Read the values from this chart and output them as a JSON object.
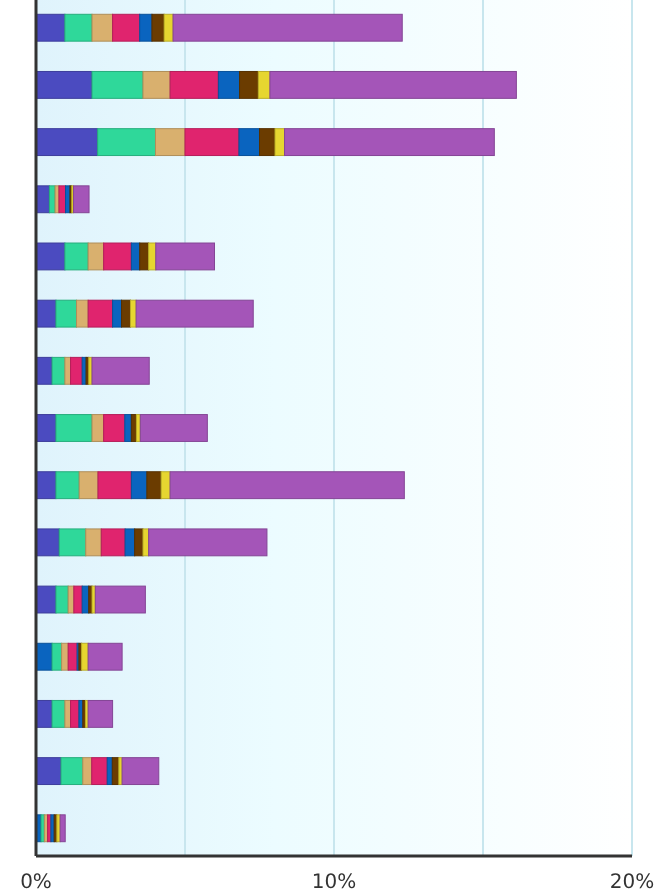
{
  "chart_data": {
    "type": "bar",
    "orientation": "horizontal",
    "stacked": true,
    "grid": "x",
    "tick_labels": "x",
    "categories": [
      null,
      null,
      null,
      null,
      null,
      null,
      null,
      null,
      null,
      null,
      null,
      null,
      null,
      null,
      null
    ],
    "xlim": [
      0,
      20
    ],
    "xticks": [
      {
        "value": 0,
        "label": "0%"
      },
      {
        "value": 5,
        "label": null
      },
      {
        "value": 10,
        "label": "10%"
      },
      {
        "value": 15,
        "label": null
      },
      {
        "value": 20,
        "label": "20%"
      }
    ],
    "series": [
      {
        "color": "#4b4bc0",
        "colors": [
          null,
          null,
          null,
          null,
          null,
          null,
          null,
          null,
          null,
          null,
          null,
          "#0a64bf",
          null,
          null,
          "#0a64bf"
        ],
        "values": [
          0.97,
          1.88,
          2.07,
          0.45,
          0.97,
          0.67,
          0.54,
          0.67,
          0.67,
          0.78,
          0.67,
          0.54,
          0.54,
          0.84,
          0.17
        ]
      },
      {
        "color": "#2fd89a",
        "values": [
          0.91,
          1.71,
          1.94,
          0.19,
          0.78,
          0.69,
          0.43,
          1.21,
          0.78,
          0.89,
          0.41,
          0.32,
          0.43,
          0.73,
          0.11
        ]
      },
      {
        "color": "#d9b06e",
        "values": [
          0.69,
          0.91,
          0.99,
          0.13,
          0.52,
          0.39,
          0.19,
          0.39,
          0.63,
          0.52,
          0.19,
          0.22,
          0.19,
          0.3,
          0.11
        ]
      },
      {
        "color": "#e0246e",
        "values": [
          0.91,
          1.62,
          1.81,
          0.22,
          0.93,
          0.82,
          0.39,
          0.71,
          1.12,
          0.8,
          0.28,
          0.3,
          0.28,
          0.52,
          0.11
        ]
      },
      {
        "color": "#0a64bf",
        "values": [
          0.41,
          0.71,
          0.69,
          0.15,
          0.28,
          0.3,
          0.13,
          0.22,
          0.52,
          0.32,
          0.22,
          0.06,
          0.13,
          0.17,
          0.11
        ]
      },
      {
        "color": "#6b3c00",
        "values": [
          0.41,
          0.63,
          0.52,
          0.06,
          0.3,
          0.3,
          0.09,
          0.17,
          0.48,
          0.28,
          0.11,
          0.09,
          0.09,
          0.22,
          0.09
        ]
      },
      {
        "color": "#e6d630",
        "values": [
          0.3,
          0.39,
          0.32,
          0.06,
          0.24,
          0.19,
          0.11,
          0.13,
          0.3,
          0.19,
          0.11,
          0.22,
          0.09,
          0.11,
          0.11
        ]
      },
      {
        "color": "#a455b8",
        "values": [
          7.69,
          8.27,
          7.04,
          0.52,
          1.97,
          3.93,
          1.92,
          2.25,
          7.86,
          3.97,
          1.68,
          1.14,
          0.82,
          1.23,
          0.17
        ]
      }
    ]
  }
}
